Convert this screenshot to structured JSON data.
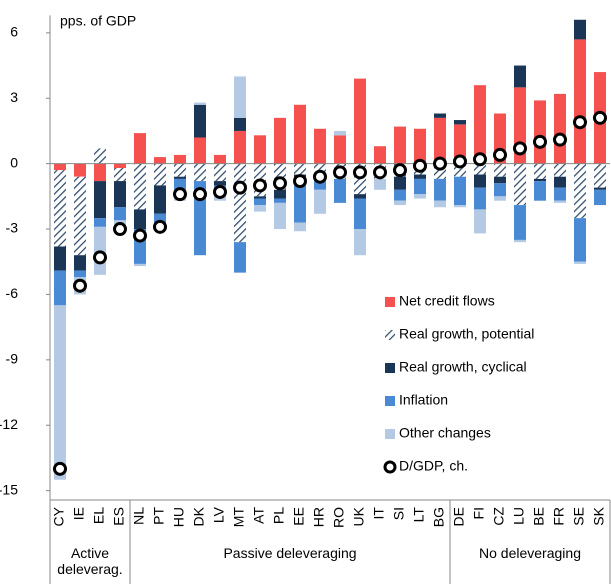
{
  "chart_data": {
    "type": "bar",
    "stacked": true,
    "y_label": "pps. of GDP",
    "categories": [
      "CY",
      "IE",
      "EL",
      "ES",
      "NL",
      "PT",
      "HU",
      "DK",
      "LV",
      "MT",
      "AT",
      "PL",
      "EE",
      "HR",
      "RO",
      "UK",
      "IT",
      "SI",
      "LT",
      "BG",
      "DE",
      "FI",
      "CZ",
      "LU",
      "BE",
      "FR",
      "SE",
      "SK"
    ],
    "series": [
      {
        "name": "Net credit flows",
        "color": "#f4514f",
        "values": [
          -0.3,
          -0.6,
          -0.8,
          -0.2,
          1.4,
          0.3,
          0.4,
          1.2,
          0.4,
          1.5,
          1.3,
          2.1,
          2.7,
          1.6,
          1.3,
          3.9,
          0.8,
          1.7,
          1.6,
          2.1,
          1.8,
          3.6,
          2.3,
          3.5,
          2.9,
          3.2,
          5.7,
          4.2
        ]
      },
      {
        "name": "Real growth, potential",
        "color": "#2f4a6d",
        "pattern": "hatch",
        "values": [
          -3.5,
          -3.6,
          0.7,
          -0.6,
          -2.1,
          -1.0,
          -0.6,
          -0.8,
          -0.8,
          -3.6,
          -1.5,
          -1.2,
          -0.5,
          -0.5,
          -0.7,
          -1.4,
          -0.7,
          -0.6,
          -0.5,
          -0.7,
          -0.6,
          -0.5,
          -0.6,
          -1.9,
          -0.7,
          -0.6,
          -2.5,
          -1.1
        ]
      },
      {
        "name": "Real growth, cyclical",
        "color": "#1a3556",
        "values": [
          -1.1,
          -0.7,
          -1.7,
          -1.2,
          -0.9,
          -1.3,
          -0.1,
          1.5,
          -0.2,
          0.6,
          -0.1,
          -0.4,
          -0.2,
          -0.2,
          0,
          -0.2,
          0,
          -0.6,
          -0.2,
          0.2,
          0.2,
          -0.6,
          -0.3,
          1.0,
          -0.1,
          -0.5,
          0.9,
          -0.1
        ]
      },
      {
        "name": "Inflation",
        "color": "#4a8ad4",
        "values": [
          -1.6,
          -0.3,
          -0.4,
          -0.6,
          -1.6,
          -0.5,
          -0.7,
          -3.4,
          -0.4,
          -1.4,
          -0.3,
          -0.2,
          -2.0,
          -0.5,
          -1.1,
          -1.4,
          0,
          -0.5,
          -0.7,
          -1.0,
          -1.3,
          -1.0,
          -0.6,
          -1.6,
          -0.9,
          -0.6,
          -2.0,
          -0.7
        ]
      },
      {
        "name": "Other changes",
        "color": "#b4c9e4",
        "values": [
          -8.0,
          -0.8,
          -2.2,
          -0.4,
          -0.1,
          -0.1,
          -0.3,
          0.1,
          -0.3,
          1.9,
          -0.3,
          -1.2,
          -0.4,
          -1.1,
          0.2,
          -1.2,
          -0.5,
          -0.2,
          -0.2,
          -0.3,
          -0.1,
          -1.1,
          -0.2,
          -0.1,
          0,
          -0.1,
          -0.1,
          0
        ]
      }
    ],
    "markers": {
      "name": "D/GDP, ch.",
      "values": [
        -14.0,
        -5.6,
        -4.3,
        -3.0,
        -3.3,
        -2.9,
        -1.4,
        -1.4,
        -1.3,
        -1.1,
        -1.0,
        -0.9,
        -0.8,
        -0.6,
        -0.4,
        -0.4,
        -0.4,
        -0.3,
        -0.1,
        0.0,
        0.1,
        0.2,
        0.4,
        0.7,
        1.0,
        1.1,
        1.9,
        2.1
      ]
    },
    "groups": [
      {
        "label": "Active deleverag.",
        "members": [
          "CY",
          "IE",
          "EL",
          "ES"
        ]
      },
      {
        "label": "Passive deleveraging",
        "members": [
          "NL",
          "PT",
          "HU",
          "DK",
          "LV",
          "MT",
          "AT",
          "PL",
          "EE",
          "HR",
          "RO",
          "UK",
          "IT",
          "SI",
          "LT",
          "BG"
        ]
      },
      {
        "label": "No deleveraging",
        "members": [
          "DE",
          "FI",
          "CZ",
          "LU",
          "BE",
          "FR",
          "SE",
          "SK"
        ]
      }
    ],
    "ylim": [
      -15.2,
      6.8
    ],
    "yticks": [
      6,
      3,
      0,
      -3,
      -6,
      -9,
      -12,
      -15
    ],
    "legend": "lower right"
  }
}
